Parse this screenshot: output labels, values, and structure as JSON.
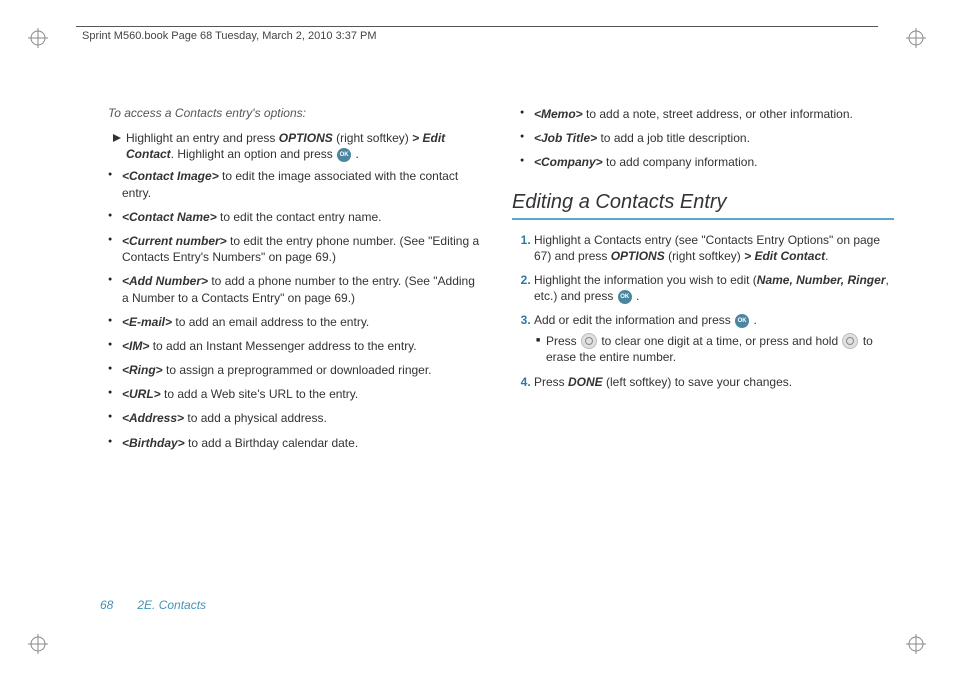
{
  "header": "Sprint M560.book  Page 68  Tuesday, March 2, 2010  3:37 PM",
  "lead": "To access a Contacts entry's options:",
  "intro_pre": "Highlight an entry and press ",
  "intro_options": "OPTIONS",
  "intro_mid": " (right softkey) ",
  "intro_gt": ">",
  "intro_edit": "Edit Contact",
  "intro_post": ". Highlight an option and press ",
  "bullets_left": [
    {
      "kw": "<Contact Image>",
      "txt": " to edit the image associated with the contact entry."
    },
    {
      "kw": "<Contact Name>",
      "txt": " to edit the contact entry name."
    },
    {
      "kw": "<Current number>",
      "txt": " to edit the entry phone number. (See \"Editing a Contacts Entry's Numbers\" on page 69.)"
    },
    {
      "kw": "<Add Number>",
      "txt": " to add a phone number to the entry. (See \"Adding a Number to a Contacts Entry\" on page 69.)"
    },
    {
      "kw": "<E-mail>",
      "txt": " to add an email address to the entry."
    },
    {
      "kw": "<IM>",
      "txt": " to add an Instant Messenger address to the entry."
    },
    {
      "kw": "<Ring>",
      "txt": " to assign a preprogrammed or downloaded ringer."
    },
    {
      "kw": "<URL>",
      "txt": " to add a Web site's URL to the entry."
    },
    {
      "kw": "<Address>",
      "txt": " to add a physical address."
    },
    {
      "kw": "<Birthday>",
      "txt": " to add a Birthday calendar date."
    }
  ],
  "bullets_right": [
    {
      "kw": "<Memo>",
      "txt": " to add a note, street address, or other information."
    },
    {
      "kw": "<Job Title>",
      "txt": " to add a job title description."
    },
    {
      "kw": "<Company>",
      "txt": " to add company information."
    }
  ],
  "section_title": "Editing a Contacts Entry",
  "step1_a": "Highlight a Contacts entry (see \"Contacts Entry Options\" on page 67) and press ",
  "step1_b": "OPTIONS",
  "step1_c": " (right softkey) ",
  "step1_d": ">",
  "step1_e": " Edit Contact",
  "step1_f": ".",
  "step2_a": "Highlight the information you wish to edit (",
  "step2_b": "Name, Number, Ringer",
  "step2_c": ", etc.) and press ",
  "step3_a": "Add or edit the information and press ",
  "sub_a": "Press ",
  "sub_b": " to clear one digit at a time, or press and hold ",
  "sub_c": " to erase the entire number.",
  "step4_a": "Press ",
  "step4_b": "DONE",
  "step4_c": " (left softkey) to save your changes.",
  "footer_page": "68",
  "footer_section": "2E. Contacts",
  "ok_label": "OK"
}
